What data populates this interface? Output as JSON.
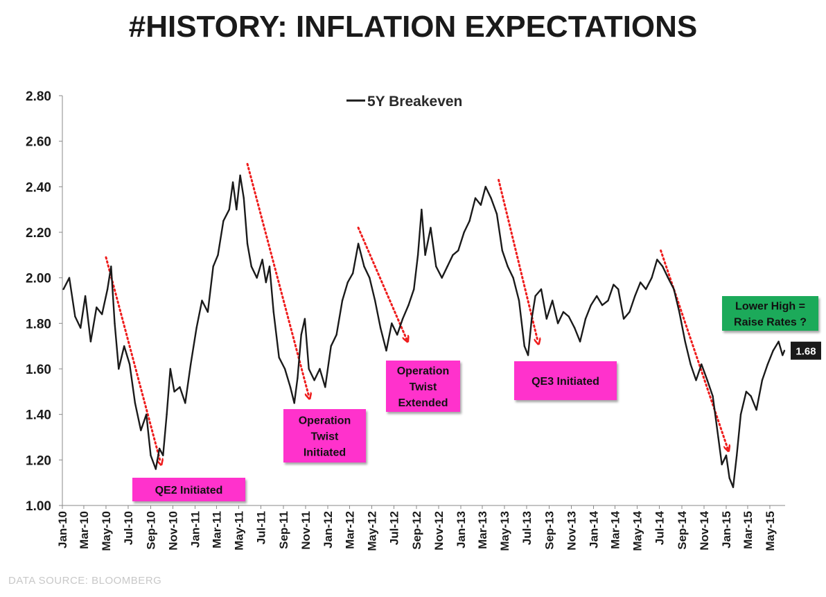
{
  "title": "#HISTORY: INFLATION EXPECTATIONS",
  "source_note": "DATA SOURCE:  BLOOMBERG",
  "chart_data": {
    "type": "line",
    "title": "#HISTORY: INFLATION EXPECTATIONS",
    "xlabel": "",
    "ylabel": "",
    "ylim": [
      1.0,
      2.8
    ],
    "yticks": [
      "1.00",
      "1.20",
      "1.40",
      "1.60",
      "1.80",
      "2.00",
      "2.20",
      "2.40",
      "2.60",
      "2.80"
    ],
    "xtick_labels": [
      "Jan-10",
      "Mar-10",
      "May-10",
      "Jul-10",
      "Sep-10",
      "Nov-10",
      "Jan-11",
      "Mar-11",
      "May-11",
      "Jul-11",
      "Sep-11",
      "Nov-11",
      "Jan-12",
      "Mar-12",
      "May-12",
      "Jul-12",
      "Sep-12",
      "Nov-12",
      "Jan-13",
      "Mar-13",
      "May-13",
      "Jul-13",
      "Sep-13",
      "Nov-13",
      "Jan-14",
      "Mar-14",
      "May-14",
      "Jul-14",
      "Sep-14",
      "Nov-14",
      "Jan-15",
      "Mar-15",
      "May-15"
    ],
    "x_range": [
      "2010-01",
      "2015-06"
    ],
    "legend": {
      "position": "top-center",
      "entries": [
        "5Y Breakeven"
      ]
    },
    "grid": false,
    "last_value_label": "1.68",
    "series": [
      {
        "name": "5Y Breakeven",
        "color": "#1a1a1a",
        "points": [
          [
            "2010-01-04",
            1.95
          ],
          [
            "2010-01-20",
            2.0
          ],
          [
            "2010-02-05",
            1.83
          ],
          [
            "2010-02-20",
            1.78
          ],
          [
            "2010-03-05",
            1.92
          ],
          [
            "2010-03-20",
            1.72
          ],
          [
            "2010-04-05",
            1.87
          ],
          [
            "2010-04-20",
            1.84
          ],
          [
            "2010-05-05",
            1.95
          ],
          [
            "2010-05-15",
            2.05
          ],
          [
            "2010-05-25",
            1.8
          ],
          [
            "2010-06-05",
            1.6
          ],
          [
            "2010-06-20",
            1.7
          ],
          [
            "2010-07-05",
            1.62
          ],
          [
            "2010-07-20",
            1.45
          ],
          [
            "2010-08-05",
            1.33
          ],
          [
            "2010-08-20",
            1.4
          ],
          [
            "2010-09-01",
            1.22
          ],
          [
            "2010-09-15",
            1.16
          ],
          [
            "2010-09-25",
            1.25
          ],
          [
            "2010-10-05",
            1.22
          ],
          [
            "2010-10-15",
            1.4
          ],
          [
            "2010-10-25",
            1.6
          ],
          [
            "2010-11-05",
            1.5
          ],
          [
            "2010-11-20",
            1.52
          ],
          [
            "2010-12-05",
            1.45
          ],
          [
            "2010-12-20",
            1.62
          ],
          [
            "2011-01-05",
            1.78
          ],
          [
            "2011-01-20",
            1.9
          ],
          [
            "2011-02-05",
            1.85
          ],
          [
            "2011-02-20",
            2.05
          ],
          [
            "2011-03-05",
            2.1
          ],
          [
            "2011-03-20",
            2.25
          ],
          [
            "2011-04-05",
            2.3
          ],
          [
            "2011-04-15",
            2.42
          ],
          [
            "2011-04-25",
            2.3
          ],
          [
            "2011-05-05",
            2.45
          ],
          [
            "2011-05-15",
            2.35
          ],
          [
            "2011-05-25",
            2.15
          ],
          [
            "2011-06-05",
            2.05
          ],
          [
            "2011-06-20",
            2.0
          ],
          [
            "2011-07-05",
            2.08
          ],
          [
            "2011-07-15",
            1.98
          ],
          [
            "2011-07-25",
            2.05
          ],
          [
            "2011-08-05",
            1.85
          ],
          [
            "2011-08-20",
            1.65
          ],
          [
            "2011-09-05",
            1.6
          ],
          [
            "2011-09-20",
            1.52
          ],
          [
            "2011-10-01",
            1.45
          ],
          [
            "2011-10-10",
            1.56
          ],
          [
            "2011-10-20",
            1.75
          ],
          [
            "2011-10-30",
            1.82
          ],
          [
            "2011-11-10",
            1.6
          ],
          [
            "2011-11-25",
            1.55
          ],
          [
            "2011-12-10",
            1.6
          ],
          [
            "2011-12-25",
            1.52
          ],
          [
            "2012-01-10",
            1.7
          ],
          [
            "2012-01-25",
            1.75
          ],
          [
            "2012-02-10",
            1.9
          ],
          [
            "2012-02-25",
            1.98
          ],
          [
            "2012-03-10",
            2.02
          ],
          [
            "2012-03-25",
            2.15
          ],
          [
            "2012-04-10",
            2.05
          ],
          [
            "2012-04-25",
            2.0
          ],
          [
            "2012-05-10",
            1.9
          ],
          [
            "2012-05-25",
            1.78
          ],
          [
            "2012-06-10",
            1.68
          ],
          [
            "2012-06-25",
            1.8
          ],
          [
            "2012-07-10",
            1.75
          ],
          [
            "2012-07-25",
            1.82
          ],
          [
            "2012-08-10",
            1.88
          ],
          [
            "2012-08-25",
            1.95
          ],
          [
            "2012-09-05",
            2.1
          ],
          [
            "2012-09-15",
            2.3
          ],
          [
            "2012-09-25",
            2.1
          ],
          [
            "2012-10-10",
            2.22
          ],
          [
            "2012-10-25",
            2.05
          ],
          [
            "2012-11-10",
            2.0
          ],
          [
            "2012-11-25",
            2.05
          ],
          [
            "2012-12-10",
            2.1
          ],
          [
            "2012-12-25",
            2.12
          ],
          [
            "2013-01-10",
            2.2
          ],
          [
            "2013-01-25",
            2.25
          ],
          [
            "2013-02-10",
            2.35
          ],
          [
            "2013-02-25",
            2.32
          ],
          [
            "2013-03-10",
            2.4
          ],
          [
            "2013-03-25",
            2.35
          ],
          [
            "2013-04-10",
            2.28
          ],
          [
            "2013-04-25",
            2.12
          ],
          [
            "2013-05-10",
            2.05
          ],
          [
            "2013-05-25",
            2.0
          ],
          [
            "2013-06-10",
            1.9
          ],
          [
            "2013-06-25",
            1.7
          ],
          [
            "2013-07-05",
            1.66
          ],
          [
            "2013-07-15",
            1.82
          ],
          [
            "2013-07-25",
            1.92
          ],
          [
            "2013-08-10",
            1.95
          ],
          [
            "2013-08-25",
            1.82
          ],
          [
            "2013-09-10",
            1.9
          ],
          [
            "2013-09-25",
            1.8
          ],
          [
            "2013-10-10",
            1.85
          ],
          [
            "2013-10-25",
            1.83
          ],
          [
            "2013-11-10",
            1.78
          ],
          [
            "2013-11-25",
            1.72
          ],
          [
            "2013-12-10",
            1.82
          ],
          [
            "2013-12-25",
            1.88
          ],
          [
            "2014-01-10",
            1.92
          ],
          [
            "2014-01-25",
            1.88
          ],
          [
            "2014-02-10",
            1.9
          ],
          [
            "2014-02-25",
            1.97
          ],
          [
            "2014-03-10",
            1.95
          ],
          [
            "2014-03-25",
            1.82
          ],
          [
            "2014-04-10",
            1.85
          ],
          [
            "2014-04-25",
            1.92
          ],
          [
            "2014-05-10",
            1.98
          ],
          [
            "2014-05-25",
            1.95
          ],
          [
            "2014-06-10",
            2.0
          ],
          [
            "2014-06-25",
            2.08
          ],
          [
            "2014-07-10",
            2.05
          ],
          [
            "2014-07-25",
            2.0
          ],
          [
            "2014-08-10",
            1.95
          ],
          [
            "2014-08-25",
            1.85
          ],
          [
            "2014-09-10",
            1.72
          ],
          [
            "2014-09-25",
            1.62
          ],
          [
            "2014-10-10",
            1.55
          ],
          [
            "2014-10-25",
            1.62
          ],
          [
            "2014-11-10",
            1.55
          ],
          [
            "2014-11-25",
            1.48
          ],
          [
            "2014-12-10",
            1.3
          ],
          [
            "2014-12-20",
            1.18
          ],
          [
            "2015-01-01",
            1.22
          ],
          [
            "2015-01-10",
            1.12
          ],
          [
            "2015-01-20",
            1.08
          ],
          [
            "2015-01-30",
            1.22
          ],
          [
            "2015-02-10",
            1.4
          ],
          [
            "2015-02-25",
            1.5
          ],
          [
            "2015-03-10",
            1.48
          ],
          [
            "2015-03-25",
            1.42
          ],
          [
            "2015-04-10",
            1.55
          ],
          [
            "2015-04-25",
            1.62
          ],
          [
            "2015-05-10",
            1.68
          ],
          [
            "2015-05-25",
            1.72
          ],
          [
            "2015-06-05",
            1.66
          ],
          [
            "2015-06-10",
            1.68
          ]
        ]
      }
    ],
    "trend_arrows": [
      {
        "from": [
          "2010-05-01",
          2.09
        ],
        "to": [
          "2010-09-28",
          1.19
        ]
      },
      {
        "from": [
          "2011-05-25",
          2.5
        ],
        "to": [
          "2011-11-10",
          1.48
        ]
      },
      {
        "from": [
          "2012-03-25",
          2.22
        ],
        "to": [
          "2012-08-05",
          1.73
        ]
      },
      {
        "from": [
          "2013-04-15",
          2.43
        ],
        "to": [
          "2013-08-01",
          1.72
        ]
      },
      {
        "from": [
          "2014-07-05",
          2.12
        ],
        "to": [
          "2015-01-05",
          1.25
        ]
      }
    ],
    "annotations": [
      {
        "lines": [
          "QE2 Initiated"
        ],
        "color": "#ff33cc"
      },
      {
        "lines": [
          "Operation",
          "Twist",
          "Initiated"
        ],
        "color": "#ff33cc"
      },
      {
        "lines": [
          "Operation",
          "Twist",
          "Extended"
        ],
        "color": "#ff33cc"
      },
      {
        "lines": [
          "QE3 Initiated"
        ],
        "color": "#ff33cc"
      },
      {
        "lines": [
          "Lower High =",
          "Raise Rates ?"
        ],
        "color": "#1aaa5a"
      }
    ]
  }
}
